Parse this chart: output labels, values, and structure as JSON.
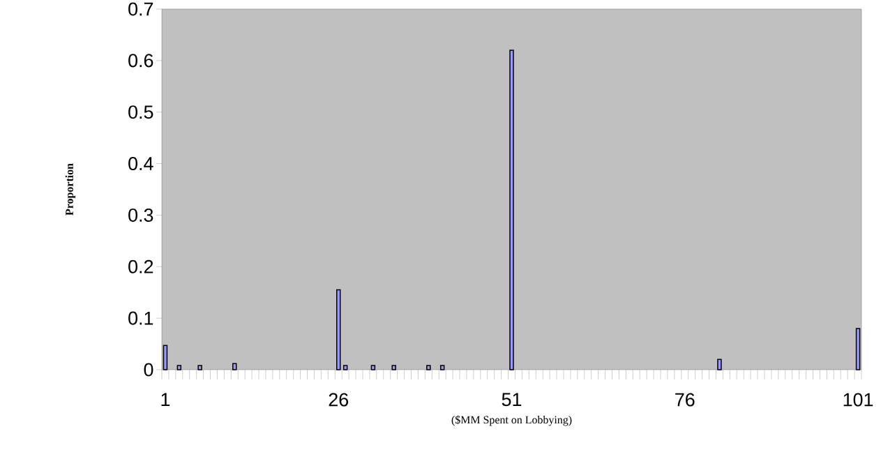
{
  "chart_data": {
    "type": "bar",
    "xlabel": "($MM Spent on Lobbying)",
    "ylabel": "Proportion",
    "categories": [
      "1",
      null,
      null,
      null,
      null,
      null,
      null,
      null,
      null,
      null,
      null,
      null,
      null,
      null,
      null,
      null,
      null,
      null,
      null,
      null,
      null,
      null,
      null,
      null,
      null,
      "26",
      null,
      null,
      null,
      null,
      null,
      null,
      null,
      null,
      null,
      null,
      null,
      null,
      null,
      null,
      null,
      null,
      null,
      null,
      null,
      null,
      null,
      null,
      null,
      null,
      "51",
      null,
      null,
      null,
      null,
      null,
      null,
      null,
      null,
      null,
      null,
      null,
      null,
      null,
      null,
      null,
      null,
      null,
      null,
      null,
      null,
      null,
      null,
      null,
      null,
      "76",
      null,
      null,
      null,
      null,
      null,
      null,
      null,
      null,
      null,
      null,
      null,
      null,
      null,
      null,
      null,
      null,
      null,
      null,
      null,
      null,
      null,
      null,
      null,
      null,
      "101"
    ],
    "values": [
      0.047,
      null,
      0.008,
      null,
      null,
      0.008,
      null,
      null,
      null,
      null,
      0.012,
      null,
      null,
      null,
      null,
      null,
      null,
      null,
      null,
      null,
      null,
      null,
      null,
      null,
      null,
      0.155,
      0.008,
      null,
      null,
      null,
      0.008,
      null,
      null,
      0.008,
      null,
      null,
      null,
      null,
      0.008,
      null,
      0.008,
      null,
      null,
      null,
      null,
      null,
      null,
      null,
      null,
      null,
      0.62,
      null,
      null,
      null,
      null,
      null,
      null,
      null,
      null,
      null,
      null,
      null,
      null,
      null,
      null,
      null,
      null,
      null,
      null,
      null,
      null,
      null,
      null,
      null,
      null,
      null,
      null,
      null,
      null,
      null,
      0.02,
      null,
      null,
      null,
      null,
      null,
      null,
      null,
      null,
      null,
      null,
      null,
      null,
      null,
      null,
      null,
      null,
      null,
      null,
      null,
      0.08
    ],
    "color": "#9999ff",
    "ylim": [
      0,
      0.7
    ],
    "yticks": [
      0,
      0.1,
      0.2,
      0.3,
      0.4,
      0.5,
      0.6,
      0.7
    ],
    "grid": false
  }
}
